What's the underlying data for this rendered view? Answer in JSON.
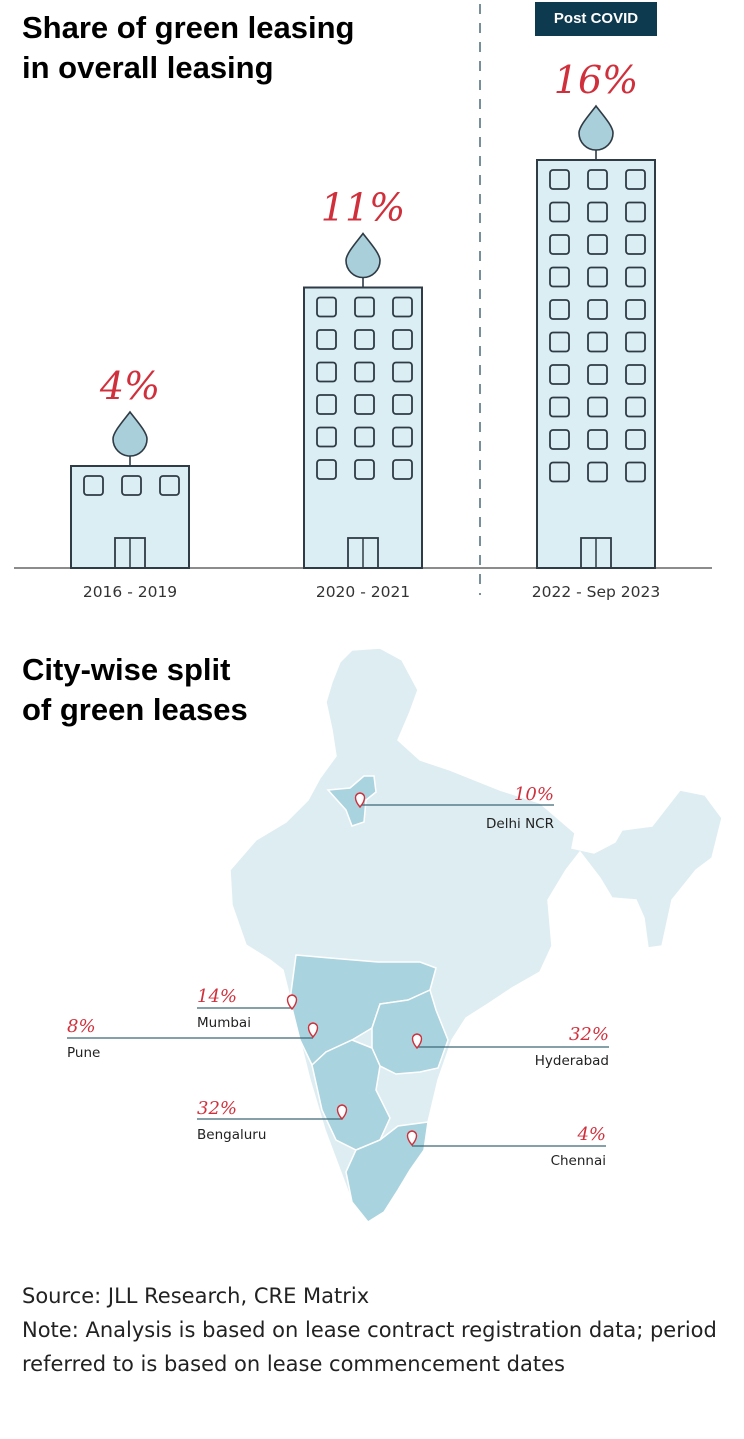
{
  "chart_data": {
    "type": "bar",
    "title": "Share of green leasing in overall leasing",
    "categories": [
      "2016 - 2019",
      "2020 - 2021",
      "2022 - Sep 2023"
    ],
    "values": [
      4,
      11,
      16
    ],
    "value_labels": [
      "4%",
      "11%",
      "16%"
    ],
    "unit": "%",
    "annotation": "Post COVID",
    "colors": {
      "building_fill": "#dbeef3",
      "building_stroke": "#2f3b45",
      "drop_fill": "#a9cfdb",
      "value_label": "#d0303c",
      "divider": "#4a6a7a"
    }
  },
  "map": {
    "title": "City-wise split of green leases",
    "cities": [
      {
        "name": "Delhi NCR",
        "value": "10%"
      },
      {
        "name": "Mumbai",
        "value": "14%"
      },
      {
        "name": "Pune",
        "value": "8%"
      },
      {
        "name": "Hyderabad",
        "value": "32%"
      },
      {
        "name": "Bengaluru",
        "value": "32%"
      },
      {
        "name": "Chennai",
        "value": "4%"
      }
    ],
    "colors": {
      "land": "#deedf2",
      "highlight": "#a9d3de",
      "line": "#3d6778",
      "pin": "#d0303c",
      "value": "#d0303c"
    }
  },
  "footer": {
    "source": "Source: JLL Research, CRE Matrix",
    "note": "Note: Analysis is based on lease contract registration data; period referred to is based on lease commencement dates"
  }
}
